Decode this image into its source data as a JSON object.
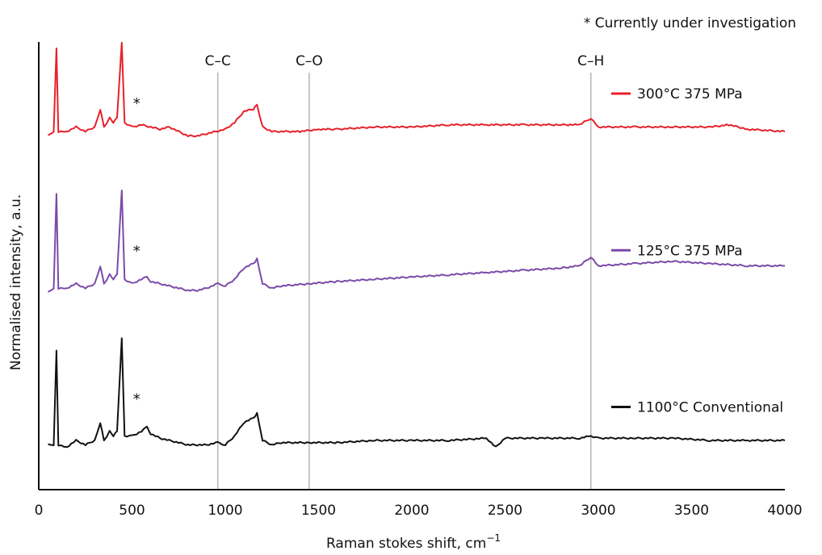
{
  "chart_data": {
    "type": "line",
    "title": "",
    "xlabel": "Raman stokes shift, cm",
    "xlabel_superscript": "−1",
    "ylabel": "Normalised intensity, a.u.",
    "xlim": [
      0,
      4000
    ],
    "x_ticks": [
      0,
      500,
      1000,
      1500,
      2000,
      2500,
      3000,
      3500,
      4000
    ],
    "y_ticks_shown": false,
    "grid": false,
    "legend_placement": "right",
    "note": "* Currently under investigation",
    "reference_lines": [
      {
        "label": "C–C",
        "x": 960
      },
      {
        "label": "C–O",
        "x": 1450
      },
      {
        "label": "C–H",
        "x": 2960
      }
    ],
    "series": [
      {
        "name": "300°C 375 MPa",
        "color": "#e8202a",
        "marker": "*",
        "baseline": 0.8,
        "points": [
          [
            50,
            0.79
          ],
          [
            80,
            0.8
          ],
          [
            95,
            0.985
          ],
          [
            105,
            0.8
          ],
          [
            150,
            0.8
          ],
          [
            200,
            0.81
          ],
          [
            250,
            0.8
          ],
          [
            300,
            0.81
          ],
          [
            330,
            0.85
          ],
          [
            350,
            0.81
          ],
          [
            380,
            0.83
          ],
          [
            400,
            0.82
          ],
          [
            420,
            0.83
          ],
          [
            445,
            1.0
          ],
          [
            460,
            0.82
          ],
          [
            500,
            0.81
          ],
          [
            550,
            0.815
          ],
          [
            600,
            0.81
          ],
          [
            650,
            0.805
          ],
          [
            700,
            0.81
          ],
          [
            750,
            0.8
          ],
          [
            800,
            0.79
          ],
          [
            850,
            0.79
          ],
          [
            900,
            0.795
          ],
          [
            950,
            0.8
          ],
          [
            1000,
            0.805
          ],
          [
            1050,
            0.82
          ],
          [
            1100,
            0.845
          ],
          [
            1150,
            0.85
          ],
          [
            1170,
            0.86
          ],
          [
            1200,
            0.81
          ],
          [
            1250,
            0.8
          ],
          [
            1300,
            0.8
          ],
          [
            1400,
            0.8
          ],
          [
            1500,
            0.805
          ],
          [
            1600,
            0.805
          ],
          [
            1800,
            0.81
          ],
          [
            2000,
            0.81
          ],
          [
            2200,
            0.815
          ],
          [
            2400,
            0.815
          ],
          [
            2600,
            0.815
          ],
          [
            2800,
            0.815
          ],
          [
            2900,
            0.815
          ],
          [
            2960,
            0.83
          ],
          [
            3000,
            0.81
          ],
          [
            3200,
            0.81
          ],
          [
            3400,
            0.81
          ],
          [
            3600,
            0.81
          ],
          [
            3700,
            0.815
          ],
          [
            3800,
            0.805
          ],
          [
            4000,
            0.8
          ]
        ]
      },
      {
        "name": "125°C 375 MPa",
        "color": "#7b4aa8",
        "marker": "*",
        "baseline": 0.45,
        "points": [
          [
            50,
            0.44
          ],
          [
            80,
            0.45
          ],
          [
            95,
            0.66
          ],
          [
            105,
            0.45
          ],
          [
            150,
            0.45
          ],
          [
            200,
            0.46
          ],
          [
            250,
            0.45
          ],
          [
            300,
            0.46
          ],
          [
            330,
            0.5
          ],
          [
            350,
            0.46
          ],
          [
            380,
            0.48
          ],
          [
            400,
            0.47
          ],
          [
            420,
            0.48
          ],
          [
            445,
            0.67
          ],
          [
            460,
            0.47
          ],
          [
            500,
            0.46
          ],
          [
            550,
            0.47
          ],
          [
            580,
            0.475
          ],
          [
            600,
            0.465
          ],
          [
            650,
            0.46
          ],
          [
            700,
            0.455
          ],
          [
            750,
            0.45
          ],
          [
            800,
            0.445
          ],
          [
            850,
            0.445
          ],
          [
            900,
            0.45
          ],
          [
            960,
            0.46
          ],
          [
            1000,
            0.455
          ],
          [
            1050,
            0.47
          ],
          [
            1100,
            0.495
          ],
          [
            1150,
            0.505
          ],
          [
            1170,
            0.515
          ],
          [
            1200,
            0.46
          ],
          [
            1250,
            0.45
          ],
          [
            1300,
            0.455
          ],
          [
            1450,
            0.46
          ],
          [
            1600,
            0.465
          ],
          [
            1800,
            0.47
          ],
          [
            2000,
            0.475
          ],
          [
            2200,
            0.48
          ],
          [
            2400,
            0.485
          ],
          [
            2600,
            0.49
          ],
          [
            2800,
            0.495
          ],
          [
            2900,
            0.5
          ],
          [
            2960,
            0.52
          ],
          [
            3000,
            0.5
          ],
          [
            3200,
            0.505
          ],
          [
            3400,
            0.51
          ],
          [
            3600,
            0.505
          ],
          [
            3800,
            0.5
          ],
          [
            4000,
            0.5
          ]
        ]
      },
      {
        "name": "1100°C Conventional",
        "color": "#111111",
        "marker": "*",
        "baseline": 0.1,
        "points": [
          [
            50,
            0.1
          ],
          [
            80,
            0.1
          ],
          [
            95,
            0.31
          ],
          [
            105,
            0.1
          ],
          [
            150,
            0.095
          ],
          [
            200,
            0.11
          ],
          [
            250,
            0.1
          ],
          [
            300,
            0.11
          ],
          [
            330,
            0.15
          ],
          [
            350,
            0.11
          ],
          [
            380,
            0.13
          ],
          [
            400,
            0.12
          ],
          [
            420,
            0.13
          ],
          [
            445,
            0.34
          ],
          [
            460,
            0.12
          ],
          [
            500,
            0.12
          ],
          [
            550,
            0.13
          ],
          [
            580,
            0.14
          ],
          [
            600,
            0.125
          ],
          [
            650,
            0.115
          ],
          [
            700,
            0.11
          ],
          [
            750,
            0.105
          ],
          [
            800,
            0.1
          ],
          [
            850,
            0.1
          ],
          [
            900,
            0.1
          ],
          [
            960,
            0.105
          ],
          [
            1000,
            0.1
          ],
          [
            1050,
            0.12
          ],
          [
            1100,
            0.15
          ],
          [
            1150,
            0.16
          ],
          [
            1170,
            0.17
          ],
          [
            1200,
            0.11
          ],
          [
            1250,
            0.1
          ],
          [
            1300,
            0.105
          ],
          [
            1450,
            0.105
          ],
          [
            1600,
            0.105
          ],
          [
            1800,
            0.11
          ],
          [
            2000,
            0.11
          ],
          [
            2200,
            0.11
          ],
          [
            2400,
            0.115
          ],
          [
            2450,
            0.095
          ],
          [
            2500,
            0.115
          ],
          [
            2700,
            0.115
          ],
          [
            2900,
            0.115
          ],
          [
            2960,
            0.12
          ],
          [
            3000,
            0.115
          ],
          [
            3200,
            0.115
          ],
          [
            3400,
            0.115
          ],
          [
            3600,
            0.11
          ],
          [
            3800,
            0.11
          ],
          [
            4000,
            0.11
          ]
        ]
      }
    ]
  }
}
